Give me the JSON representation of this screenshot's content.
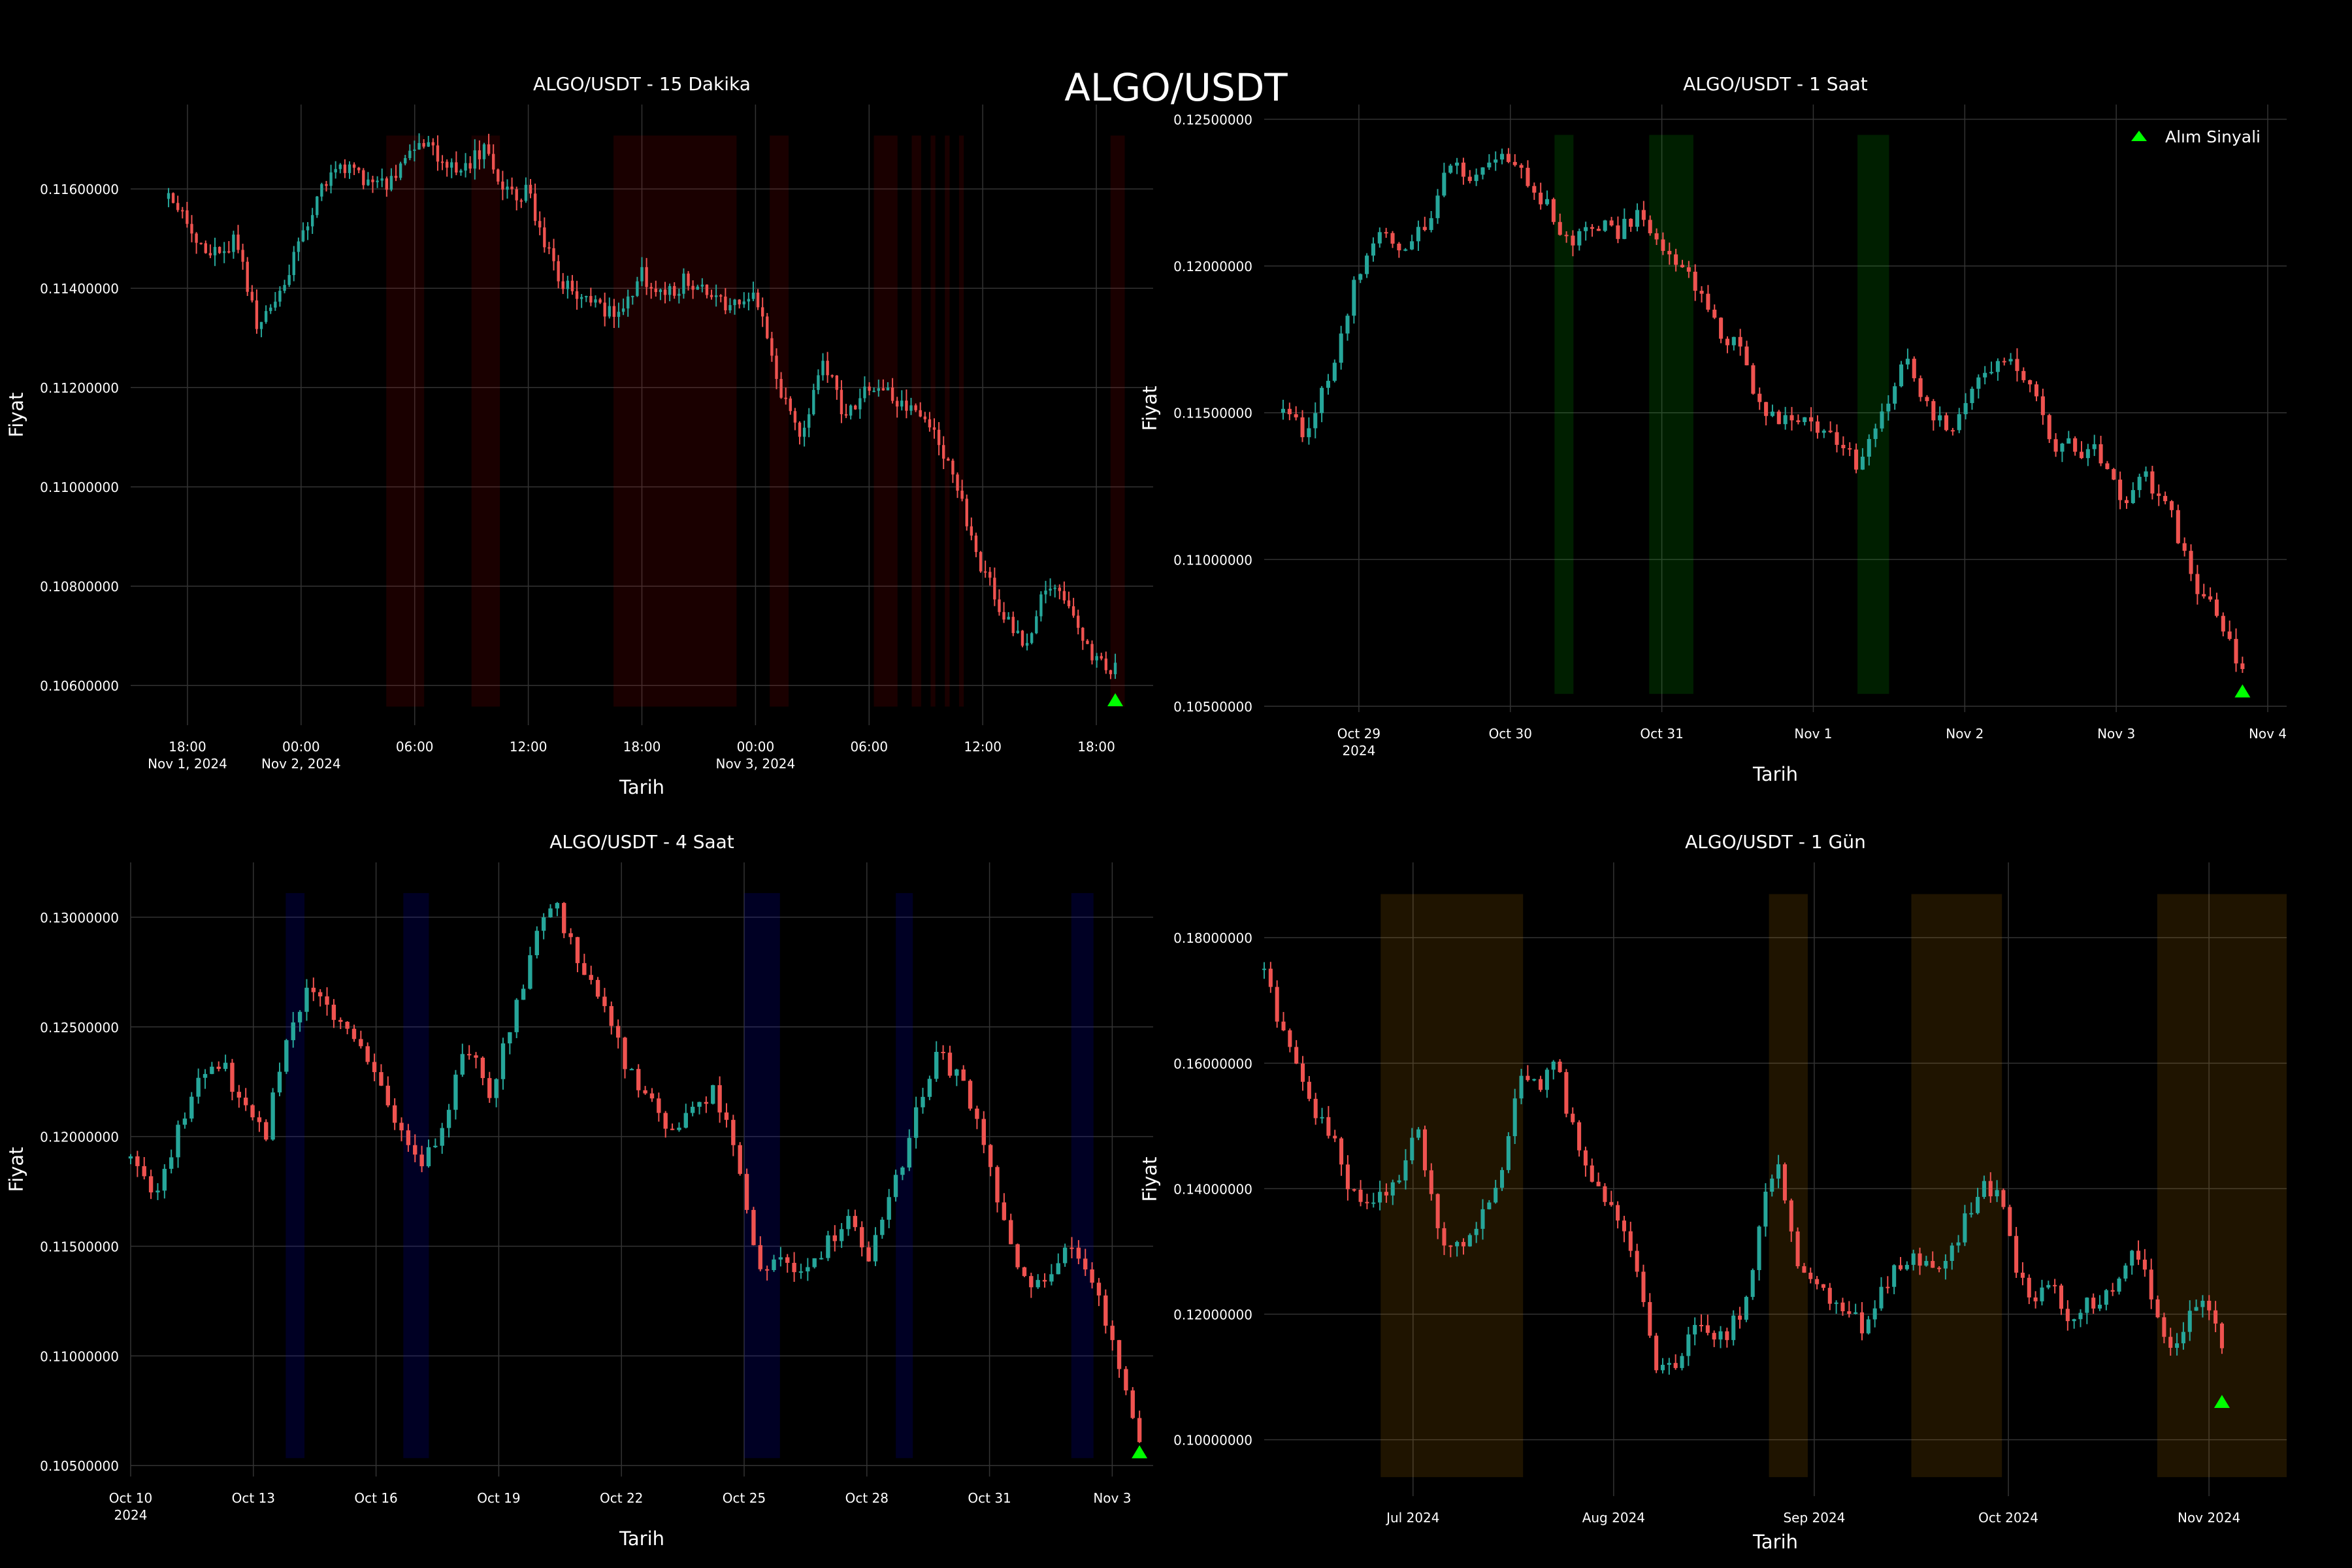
{
  "figure": {
    "title": "ALGO/USDT"
  },
  "colors": {
    "background": "#000000",
    "up_candle": "#26a69a",
    "down_candle": "#ef5350",
    "grid": "#333333",
    "signal": "#00ff00",
    "panel_15m_band": "#ff0000",
    "panel_1h_band": "#00ff00",
    "panel_4h_band": "#0000ff",
    "panel_1d_band": "#ffa500"
  },
  "legend": {
    "marker": "triangle-up",
    "label": "Alım Sinyali",
    "location": "upper right"
  },
  "chart_data": [
    {
      "type": "candlestick",
      "title": "ALGO/USDT - 15 Dakika",
      "xlabel": "Tarih",
      "ylabel": "Fiyat",
      "x_range": [
        "2024-11-01 15:00",
        "2024-11-03 21:00"
      ],
      "ylim": [
        0.1052,
        0.1177
      ],
      "y_ticks": [
        "0.10600000",
        "0.10800000",
        "0.11000000",
        "0.11200000",
        "0.11400000",
        "0.11600000"
      ],
      "x_ticks": [
        {
          "x": "2024-11-01 18:00",
          "label": "18:00",
          "sub": "Nov 1, 2024"
        },
        {
          "x": "2024-11-02 00:00",
          "label": "00:00",
          "sub": "Nov 2, 2024"
        },
        {
          "x": "2024-11-02 06:00",
          "label": "06:00",
          "sub": ""
        },
        {
          "x": "2024-11-02 12:00",
          "label": "12:00",
          "sub": ""
        },
        {
          "x": "2024-11-02 18:00",
          "label": "18:00",
          "sub": ""
        },
        {
          "x": "2024-11-03 00:00",
          "label": "00:00",
          "sub": "Nov 3, 2024"
        },
        {
          "x": "2024-11-03 06:00",
          "label": "06:00",
          "sub": ""
        },
        {
          "x": "2024-11-03 12:00",
          "label": "12:00",
          "sub": ""
        },
        {
          "x": "2024-11-03 18:00",
          "label": "18:00",
          "sub": ""
        }
      ],
      "series_x_range": [
        "2024-11-01 17:00",
        "2024-11-03 19:00"
      ],
      "price_path": [
        0.1158,
        0.1152,
        0.1147,
        0.115,
        0.1132,
        0.1138,
        0.1152,
        0.1161,
        0.1165,
        0.116,
        0.1162,
        0.117,
        0.1167,
        0.1164,
        0.1168,
        0.116,
        0.1159,
        0.1145,
        0.1138,
        0.1136,
        0.1134,
        0.1143,
        0.1138,
        0.1142,
        0.114,
        0.1136,
        0.1141,
        0.112,
        0.111,
        0.1125,
        0.1115,
        0.112,
        0.1118,
        0.1115,
        0.1112,
        0.11,
        0.1085,
        0.1075,
        0.1068,
        0.108,
        0.1075,
        0.1065,
        0.1063
      ],
      "highlight_bands": [
        [
          "2024-11-02 04:30",
          "2024-11-02 06:30"
        ],
        [
          "2024-11-02 09:00",
          "2024-11-02 10:30"
        ],
        [
          "2024-11-02 16:30",
          "2024-11-02 23:00"
        ],
        [
          "2024-11-03 00:45",
          "2024-11-03 01:45"
        ],
        [
          "2024-11-03 06:15",
          "2024-11-03 07:30"
        ],
        [
          "2024-11-03 08:15",
          "2024-11-03 08:45"
        ],
        [
          "2024-11-03 09:15",
          "2024-11-03 09:30"
        ],
        [
          "2024-11-03 10:00",
          "2024-11-03 10:15"
        ],
        [
          "2024-11-03 10:45",
          "2024-11-03 11:00"
        ],
        [
          "2024-11-03 18:45",
          "2024-11-03 19:30"
        ]
      ],
      "signals": [
        {
          "x": "2024-11-03 19:00",
          "y": 0.1057
        }
      ]
    },
    {
      "type": "candlestick",
      "title": "ALGO/USDT - 1 Saat",
      "xlabel": "Tarih",
      "ylabel": "Fiyat",
      "x_range": [
        "2024-10-28 09:00",
        "2024-11-04 03:00"
      ],
      "ylim": [
        0.1048,
        0.1255
      ],
      "y_ticks": [
        "0.10500000",
        "0.11000000",
        "0.11500000",
        "0.12000000",
        "0.12500000"
      ],
      "x_ticks": [
        {
          "x": "2024-10-29",
          "label": "Oct 29",
          "sub": "2024"
        },
        {
          "x": "2024-10-30",
          "label": "Oct 30",
          "sub": ""
        },
        {
          "x": "2024-10-31",
          "label": "Oct 31",
          "sub": ""
        },
        {
          "x": "2024-11-01",
          "label": "Nov 1",
          "sub": ""
        },
        {
          "x": "2024-11-02",
          "label": "Nov 2",
          "sub": ""
        },
        {
          "x": "2024-11-03",
          "label": "Nov 3",
          "sub": ""
        },
        {
          "x": "2024-11-04",
          "label": "Nov 4",
          "sub": ""
        }
      ],
      "series_x_range": [
        "2024-10-28 12:00",
        "2024-11-03 20:00"
      ],
      "price_path": [
        0.115,
        0.1142,
        0.1165,
        0.1195,
        0.121,
        0.1205,
        0.1215,
        0.1235,
        0.123,
        0.1238,
        0.123,
        0.122,
        0.1208,
        0.1215,
        0.1212,
        0.1218,
        0.1205,
        0.1195,
        0.118,
        0.1172,
        0.115,
        0.1148,
        0.1145,
        0.114,
        0.1132,
        0.115,
        0.117,
        0.1148,
        0.1145,
        0.116,
        0.117,
        0.1162,
        0.114,
        0.1138,
        0.1136,
        0.112,
        0.1128,
        0.1115,
        0.1092,
        0.108,
        0.106
      ],
      "highlight_bands": [
        [
          "2024-10-30 07:00",
          "2024-10-30 10:00"
        ],
        [
          "2024-10-30 22:00",
          "2024-10-31 05:00"
        ],
        [
          "2024-11-01 07:00",
          "2024-11-01 12:00"
        ]
      ],
      "signals": [
        {
          "x": "2024-11-03 20:00",
          "y": 0.1055
        }
      ]
    },
    {
      "type": "candlestick",
      "title": "ALGO/USDT - 4 Saat",
      "xlabel": "Tarih",
      "ylabel": "Fiyat",
      "x_range": [
        "2024-10-10",
        "2024-11-04"
      ],
      "ylim": [
        0.1045,
        0.1325
      ],
      "y_ticks": [
        "0.10500000",
        "0.11000000",
        "0.11500000",
        "0.12000000",
        "0.12500000",
        "0.13000000"
      ],
      "x_ticks": [
        {
          "x": "2024-10-10",
          "label": "Oct 10",
          "sub": "2024"
        },
        {
          "x": "2024-10-13",
          "label": "Oct 13",
          "sub": ""
        },
        {
          "x": "2024-10-16",
          "label": "Oct 16",
          "sub": ""
        },
        {
          "x": "2024-10-19",
          "label": "Oct 19",
          "sub": ""
        },
        {
          "x": "2024-10-22",
          "label": "Oct 22",
          "sub": ""
        },
        {
          "x": "2024-10-25",
          "label": "Oct 25",
          "sub": ""
        },
        {
          "x": "2024-10-28",
          "label": "Oct 28",
          "sub": ""
        },
        {
          "x": "2024-10-31",
          "label": "Oct 31",
          "sub": ""
        },
        {
          "x": "2024-11-03",
          "label": "Nov 3",
          "sub": ""
        }
      ],
      "series_x_range": [
        "2024-10-10 00:00",
        "2024-11-03 16:00"
      ],
      "price_path": [
        0.119,
        0.117,
        0.12,
        0.1225,
        0.1235,
        0.1215,
        0.12,
        0.125,
        0.127,
        0.1255,
        0.1245,
        0.123,
        0.12,
        0.1185,
        0.121,
        0.124,
        0.122,
        0.125,
        0.129,
        0.1305,
        0.128,
        0.126,
        0.1235,
        0.122,
        0.12,
        0.1215,
        0.122,
        0.1195,
        0.114,
        0.1145,
        0.114,
        0.115,
        0.116,
        0.1145,
        0.1175,
        0.121,
        0.124,
        0.1225,
        0.12,
        0.116,
        0.113,
        0.114,
        0.115,
        0.1135,
        0.11,
        0.106
      ],
      "highlight_bands": [
        [
          "2024-10-13 19:00",
          "2024-10-14 06:00"
        ],
        [
          "2024-10-16 16:00",
          "2024-10-17 07:00"
        ],
        [
          "2024-10-25 00:00",
          "2024-10-25 21:00"
        ],
        [
          "2024-10-28 17:00",
          "2024-10-29 03:00"
        ],
        [
          "2024-11-02 00:00",
          "2024-11-02 13:00"
        ]
      ],
      "signals": [
        {
          "x": "2024-11-03 16:00",
          "y": 0.1056
        }
      ]
    },
    {
      "type": "candlestick",
      "title": "ALGO/USDT - 1 Gün",
      "xlabel": "Tarih",
      "ylabel": "Fiyat",
      "x_range": [
        "2024-06-08",
        "2024-11-13"
      ],
      "ylim": [
        0.091,
        0.192
      ],
      "y_ticks": [
        "0.10000000",
        "0.12000000",
        "0.14000000",
        "0.16000000",
        "0.18000000"
      ],
      "x_ticks": [
        {
          "x": "2024-07-01",
          "label": "Jul 2024",
          "sub": ""
        },
        {
          "x": "2024-08-01",
          "label": "Aug 2024",
          "sub": ""
        },
        {
          "x": "2024-09-01",
          "label": "Sep 2024",
          "sub": ""
        },
        {
          "x": "2024-10-01",
          "label": "Oct 2024",
          "sub": ""
        },
        {
          "x": "2024-11-01",
          "label": "Nov 2024",
          "sub": ""
        }
      ],
      "series_x_range": [
        "2024-06-08",
        "2024-11-03"
      ],
      "price_path": [
        0.175,
        0.165,
        0.16,
        0.152,
        0.148,
        0.14,
        0.138,
        0.14,
        0.142,
        0.15,
        0.135,
        0.13,
        0.132,
        0.137,
        0.145,
        0.158,
        0.156,
        0.16,
        0.15,
        0.142,
        0.138,
        0.135,
        0.125,
        0.11,
        0.112,
        0.118,
        0.116,
        0.117,
        0.12,
        0.135,
        0.145,
        0.13,
        0.125,
        0.123,
        0.12,
        0.118,
        0.124,
        0.128,
        0.13,
        0.126,
        0.128,
        0.135,
        0.142,
        0.138,
        0.127,
        0.123,
        0.124,
        0.12,
        0.121,
        0.123,
        0.126,
        0.13,
        0.122,
        0.115,
        0.119,
        0.124,
        0.115
      ],
      "highlight_bands": [
        [
          "2024-06-26",
          "2024-07-18"
        ],
        [
          "2024-08-25",
          "2024-08-31"
        ],
        [
          "2024-09-16",
          "2024-09-30"
        ],
        [
          "2024-10-24",
          "2024-11-23"
        ]
      ],
      "signals": [
        {
          "x": "2024-11-03",
          "y": 0.106
        }
      ]
    }
  ]
}
